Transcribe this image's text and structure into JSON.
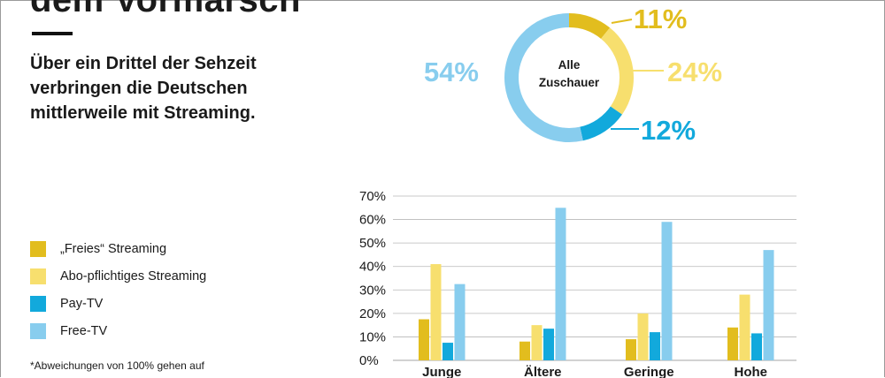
{
  "header": {
    "title": "dem Vormarsch",
    "subtitle": "Über ein Drittel der Sehzeit verbringen die Deutschen mittlerweile mit Streaming."
  },
  "legend": [
    {
      "label": "„Freies“ Streaming",
      "color": "#e2bd1e"
    },
    {
      "label": "Abo-pflichtiges Streaming",
      "color": "#f7df6e"
    },
    {
      "label": "Pay-TV",
      "color": "#12a9dc"
    },
    {
      "label": "Free-TV",
      "color": "#88cdee"
    }
  ],
  "footnote": "*Abweichungen von 100% gehen auf",
  "chart_data": [
    {
      "type": "pie",
      "center_label": [
        "Alle",
        "Zuschauer"
      ],
      "slices": [
        {
          "label": "„Freies“ Streaming",
          "value": 11,
          "display": "11%",
          "color": "#e2bd1e"
        },
        {
          "label": "Abo-pflichtiges Streaming",
          "value": 24,
          "display": "24%",
          "color": "#f7df6e"
        },
        {
          "label": "Pay-TV",
          "value": 12,
          "display": "12%",
          "color": "#12a9dc"
        },
        {
          "label": "Free-TV",
          "value": 54,
          "display": "54%",
          "color": "#88cdee"
        }
      ]
    },
    {
      "type": "bar",
      "categories": [
        "Junge",
        "Ältere",
        "Geringe",
        "Hohe"
      ],
      "y_ticks": [
        "0%",
        "10%",
        "20%",
        "30%",
        "40%",
        "50%",
        "60%",
        "70%"
      ],
      "ylim": [
        0,
        70
      ],
      "grid": true,
      "series": [
        {
          "name": "„Freies“ Streaming",
          "color": "#e2bd1e",
          "values": [
            17.5,
            8,
            9,
            14
          ]
        },
        {
          "name": "Abo-pflichtiges Streaming",
          "color": "#f7df6e",
          "values": [
            41,
            15,
            20,
            28
          ]
        },
        {
          "name": "Pay-TV",
          "color": "#12a9dc",
          "values": [
            7.5,
            13.5,
            12,
            11.5
          ]
        },
        {
          "name": "Free-TV",
          "color": "#88cdee",
          "values": [
            32.5,
            65,
            59,
            47
          ]
        }
      ]
    }
  ]
}
